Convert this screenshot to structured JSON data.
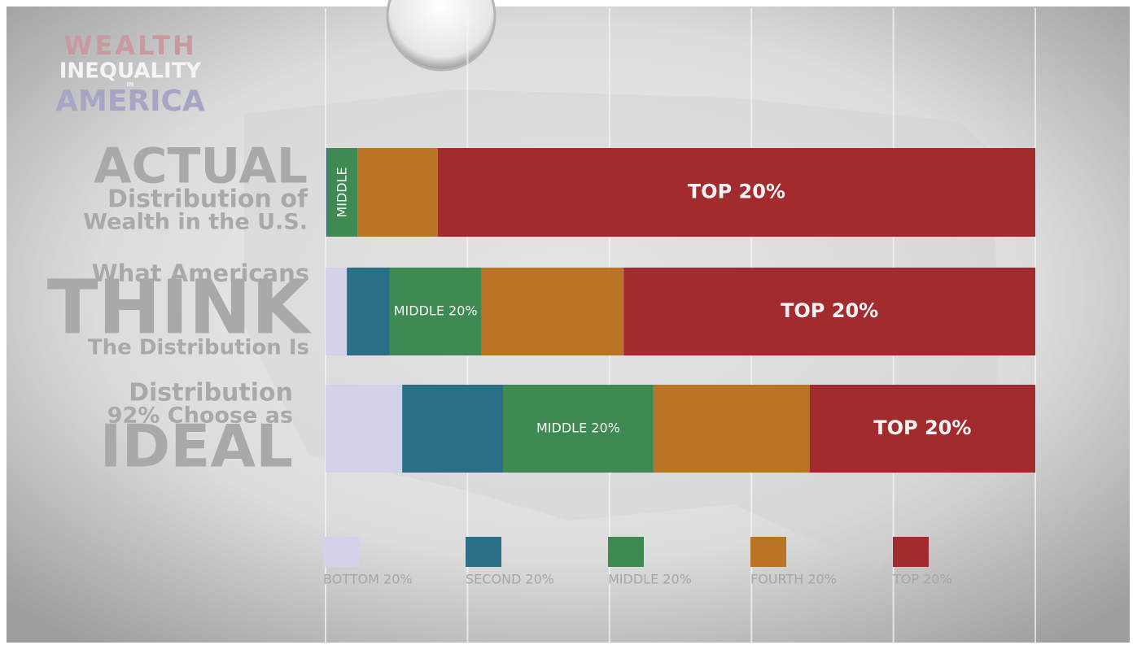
{
  "logo": [
    "WEALTH",
    "INEQUALITY",
    "IN",
    "AMERICA"
  ],
  "chart_data": {
    "type": "stacked-bar-horizontal",
    "categories": [
      [
        "ACTUAL",
        "Distribution of",
        "Wealth in the U.S."
      ],
      [
        "What Americans",
        "THINK",
        "The Distribution Is"
      ],
      [
        "Distribution",
        "92% Choose as",
        "IDEAL"
      ]
    ],
    "series": [
      {
        "name": "BOTTOM 20%",
        "color": "#d4d2ea",
        "values": [
          0.1,
          3,
          10.8
        ]
      },
      {
        "name": "SECOND 20%",
        "color": "#2b6f86",
        "values": [
          0.2,
          6,
          14.2
        ]
      },
      {
        "name": "MIDDLE 20%",
        "color": "#3f8a52",
        "values": [
          4.2,
          13,
          21.2
        ],
        "labels": [
          "MIDDLE",
          "MIDDLE 20%",
          "MIDDLE 20%"
        ]
      },
      {
        "name": "FOURTH 20%",
        "color": "#bb7426",
        "values": [
          11.3,
          20,
          22
        ]
      },
      {
        "name": "TOP 20%",
        "color": "#a22b2e",
        "values": [
          84.2,
          58,
          31.8
        ],
        "labels": [
          "TOP 20%",
          "TOP 20%",
          "TOP 20%"
        ]
      }
    ],
    "xlim": [
      0,
      100
    ],
    "xticks": [
      0,
      20,
      40,
      60,
      80,
      100
    ],
    "grid": true
  }
}
